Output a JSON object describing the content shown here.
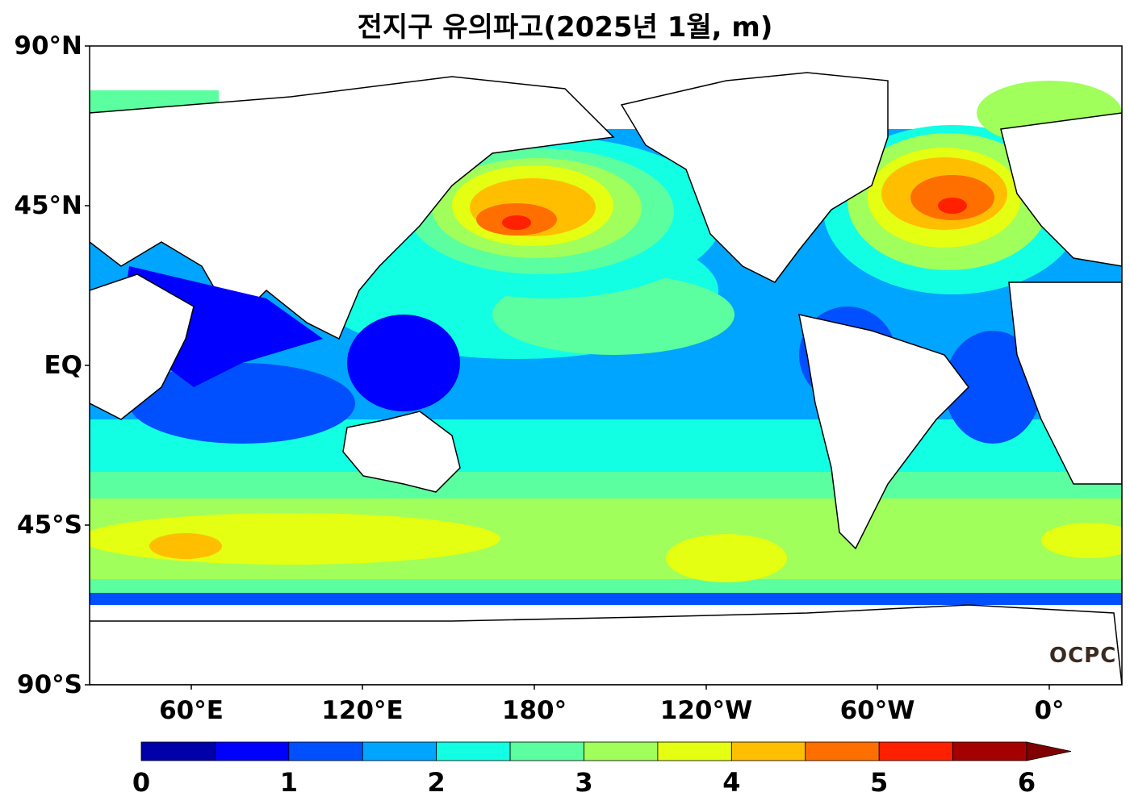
{
  "title": "전지구 유의파고(2025년 1월, m)",
  "map": {
    "lat_labels": [
      "90°N",
      "45°N",
      "EQ",
      "45°S",
      "90°S"
    ],
    "lon_labels": [
      "60°E",
      "120°E",
      "180°",
      "120°W",
      "60°W",
      "0°"
    ],
    "watermark": "OCPC"
  },
  "colorbar": {
    "ticks": [
      "0",
      "1",
      "2",
      "3",
      "4",
      "5",
      "6"
    ],
    "levels": [
      0,
      0.5,
      1,
      1.5,
      2,
      2.5,
      3,
      3.5,
      4,
      4.5,
      5,
      5.5,
      6
    ],
    "colors": [
      "#0000aa",
      "#0000ff",
      "#0050ff",
      "#00a5ff",
      "#12ffe4",
      "#5bffa0",
      "#a0ff5b",
      "#e4ff12",
      "#ffbf00",
      "#ff6f00",
      "#ff2000",
      "#a50000"
    ],
    "extend": "max",
    "extend_color": "#800000"
  }
}
